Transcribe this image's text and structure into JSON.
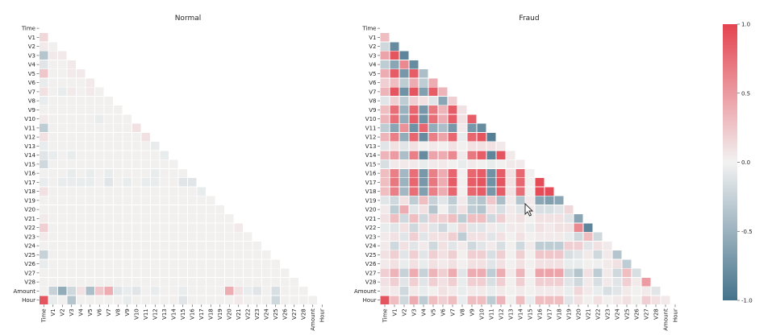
{
  "chart_data": [
    {
      "type": "heatmap",
      "title": "Normal",
      "shape": "lower-triangle",
      "labels": [
        "Time",
        "V1",
        "V2",
        "V3",
        "V4",
        "V5",
        "V6",
        "V7",
        "V8",
        "V9",
        "V10",
        "V11",
        "V12",
        "V13",
        "V14",
        "V15",
        "V16",
        "V17",
        "V18",
        "V19",
        "V20",
        "V21",
        "V22",
        "V23",
        "V24",
        "V25",
        "V26",
        "V27",
        "V28",
        "Amount",
        "Hour"
      ],
      "values": [
        [],
        [
          0.15
        ],
        [
          0.05,
          0.02
        ],
        [
          -0.35,
          0.05,
          0.05
        ],
        [
          -0.1,
          0.02,
          0.02,
          0.05
        ],
        [
          0.25,
          0.02,
          0.02,
          0.05,
          0.05
        ],
        [
          -0.05,
          0.02,
          0.02,
          0.02,
          0.02,
          0.05
        ],
        [
          0.1,
          0.02,
          -0.05,
          0.05,
          0.02,
          0.05,
          0.02
        ],
        [
          -0.05,
          0.02,
          0.02,
          0.02,
          0.02,
          0.02,
          0.02,
          0.02
        ],
        [
          0.02,
          0.02,
          0.02,
          0.02,
          0.02,
          0.02,
          0.02,
          0.02,
          0.02
        ],
        [
          0.05,
          0.02,
          0.02,
          0.02,
          0.02,
          0.02,
          -0.05,
          0.02,
          0.02,
          0.02
        ],
        [
          -0.3,
          0.02,
          0.02,
          0.02,
          0.02,
          0.02,
          0.02,
          0.02,
          0.02,
          0.02,
          0.1
        ],
        [
          0.1,
          0.02,
          0.02,
          0.02,
          0.02,
          0.02,
          0.02,
          0.02,
          0.02,
          0.02,
          0.02,
          0.1
        ],
        [
          -0.05,
          0.02,
          0.02,
          0.02,
          0.02,
          0.02,
          0.02,
          0.02,
          0.02,
          0.02,
          0.02,
          0.02,
          -0.05
        ],
        [
          -0.1,
          -0.05,
          0.02,
          -0.05,
          0.02,
          0.02,
          0.02,
          0.02,
          0.02,
          0.02,
          0.02,
          0.02,
          0.02,
          -0.05
        ],
        [
          -0.2,
          0.02,
          0.02,
          0.02,
          0.02,
          0.02,
          0.02,
          0.02,
          0.02,
          0.02,
          0.02,
          0.02,
          0.02,
          0.02,
          0.02
        ],
        [
          0.02,
          0.02,
          0.02,
          -0.05,
          0.02,
          -0.05,
          0.02,
          -0.05,
          0.02,
          0.02,
          0.02,
          0.02,
          -0.05,
          0.02,
          0.02,
          0.02
        ],
        [
          -0.05,
          0.02,
          -0.05,
          -0.05,
          -0.05,
          -0.05,
          0.02,
          -0.1,
          0.02,
          -0.05,
          0.02,
          -0.05,
          -0.05,
          0.02,
          0.02,
          -0.1,
          -0.1
        ],
        [
          0.1,
          0.02,
          0.02,
          0.02,
          0.02,
          0.02,
          0.02,
          0.02,
          0.02,
          0.02,
          0.02,
          0.02,
          0.02,
          0.02,
          0.02,
          0.02,
          0.02,
          -0.05
        ],
        [
          0.02,
          0.02,
          0.02,
          0.02,
          0.02,
          0.02,
          0.02,
          0.02,
          0.02,
          0.02,
          0.02,
          0.02,
          0.02,
          0.02,
          0.02,
          0.02,
          0.02,
          0.02,
          0.02
        ],
        [
          0.02,
          0.02,
          0.02,
          0.02,
          0.02,
          0.02,
          0.02,
          0.02,
          0.02,
          0.02,
          0.02,
          0.02,
          0.02,
          0.02,
          0.02,
          0.02,
          0.02,
          0.02,
          0.02,
          0.02
        ],
        [
          0.05,
          0.02,
          0.02,
          0.02,
          0.02,
          0.02,
          0.02,
          0.02,
          0.02,
          0.02,
          0.02,
          0.02,
          0.02,
          0.02,
          0.02,
          0.02,
          0.02,
          0.02,
          0.02,
          0.02,
          0.02
        ],
        [
          0.2,
          0.02,
          0.02,
          0.02,
          0.02,
          0.02,
          0.02,
          0.02,
          0.02,
          0.02,
          0.02,
          0.02,
          0.02,
          0.02,
          0.02,
          0.02,
          0.02,
          0.02,
          0.02,
          0.02,
          0.02,
          0.05
        ],
        [
          0.05,
          0.02,
          0.02,
          0.02,
          0.02,
          0.02,
          0.02,
          0.02,
          0.02,
          0.02,
          0.02,
          0.02,
          0.02,
          0.02,
          0.02,
          0.02,
          0.02,
          0.02,
          0.02,
          0.02,
          0.02,
          0.02,
          0.02
        ],
        [
          0.02,
          0.02,
          0.02,
          0.02,
          0.02,
          0.02,
          0.02,
          0.02,
          0.02,
          0.02,
          0.02,
          0.02,
          0.02,
          0.02,
          0.02,
          0.02,
          0.02,
          0.02,
          0.02,
          0.02,
          0.02,
          0.02,
          0.02,
          0.02
        ],
        [
          -0.25,
          0.02,
          0.02,
          0.02,
          0.02,
          0.02,
          0.02,
          0.02,
          0.02,
          0.02,
          0.02,
          0.02,
          0.02,
          0.02,
          0.02,
          0.02,
          0.02,
          0.02,
          0.02,
          0.02,
          0.02,
          0.02,
          0.02,
          0.02,
          0.02
        ],
        [
          -0.05,
          0.02,
          0.02,
          0.02,
          0.02,
          0.02,
          0.02,
          0.02,
          0.02,
          0.02,
          0.02,
          0.02,
          0.02,
          0.02,
          0.02,
          0.02,
          0.02,
          0.02,
          0.02,
          0.02,
          0.02,
          0.02,
          0.02,
          0.02,
          0.02,
          0.02
        ],
        [
          0.02,
          0.02,
          0.02,
          0.02,
          0.02,
          0.02,
          0.02,
          0.02,
          0.02,
          0.02,
          0.02,
          0.02,
          0.02,
          0.02,
          0.02,
          0.02,
          0.02,
          0.02,
          0.02,
          0.02,
          0.02,
          0.02,
          0.02,
          0.02,
          0.02,
          0.02,
          0.02
        ],
        [
          0.02,
          0.02,
          0.02,
          0.02,
          0.02,
          0.02,
          0.02,
          0.02,
          0.02,
          0.02,
          0.02,
          0.02,
          0.02,
          0.02,
          0.02,
          0.02,
          0.02,
          0.02,
          0.02,
          0.02,
          0.02,
          0.02,
          0.02,
          0.02,
          0.02,
          0.02,
          0.02,
          0.02
        ],
        [
          0.02,
          -0.25,
          -0.55,
          -0.2,
          0.1,
          -0.4,
          0.25,
          0.4,
          -0.1,
          -0.05,
          -0.1,
          0.02,
          -0.05,
          0.02,
          0.02,
          -0.05,
          0.02,
          0.02,
          0.02,
          0.02,
          0.4,
          0.1,
          -0.05,
          -0.1,
          0.02,
          -0.15,
          0.02,
          0.02,
          0.02
        ],
        [
          0.9,
          -0.05,
          0.02,
          -0.35,
          0.02,
          0.02,
          0.02,
          0.02,
          0.02,
          -0.05,
          0.02,
          0.02,
          0.02,
          0.02,
          0.02,
          -0.1,
          0.02,
          0.02,
          0.02,
          0.02,
          0.02,
          0.05,
          0.02,
          0.02,
          0.02,
          -0.2,
          0.02,
          0.02,
          0.02,
          0.02
        ]
      ]
    },
    {
      "type": "heatmap",
      "title": "Fraud",
      "shape": "lower-triangle",
      "labels": [
        "Time",
        "V1",
        "V2",
        "V3",
        "V4",
        "V5",
        "V6",
        "V7",
        "V8",
        "V9",
        "V10",
        "V11",
        "V12",
        "V13",
        "V14",
        "V15",
        "V16",
        "V17",
        "V18",
        "V19",
        "V20",
        "V21",
        "V22",
        "V23",
        "V24",
        "V25",
        "V26",
        "V27",
        "V28",
        "Amount",
        "Hour"
      ],
      "values": [
        [],
        [
          0.3
        ],
        [
          -0.2,
          -0.8
        ],
        [
          0.45,
          0.9,
          -0.85
        ],
        [
          -0.3,
          -0.6,
          0.6,
          -0.8
        ],
        [
          0.4,
          0.85,
          -0.7,
          0.85,
          -0.4
        ],
        [
          0.2,
          0.3,
          -0.3,
          0.4,
          -0.3,
          0.4
        ],
        [
          0.35,
          0.9,
          -0.75,
          0.9,
          -0.65,
          0.85,
          0.35
        ],
        [
          -0.1,
          0.2,
          -0.3,
          0.2,
          0.1,
          -0.1,
          -0.6,
          0.2
        ],
        [
          0.3,
          0.75,
          -0.5,
          0.8,
          -0.7,
          0.7,
          0.35,
          0.85,
          0.1
        ],
        [
          0.35,
          0.75,
          -0.55,
          0.85,
          -0.75,
          0.75,
          0.4,
          0.85,
          0.1,
          0.85
        ],
        [
          -0.3,
          -0.6,
          0.55,
          -0.75,
          0.8,
          -0.55,
          -0.4,
          -0.7,
          0.05,
          -0.7,
          -0.8
        ],
        [
          0.35,
          0.65,
          -0.55,
          0.8,
          -0.8,
          0.65,
          0.45,
          0.8,
          -0.05,
          0.8,
          0.9,
          -0.9
        ],
        [
          -0.1,
          0.1,
          -0.1,
          0.1,
          0.02,
          0.05,
          0.02,
          0.1,
          0.02,
          0.1,
          0.1,
          0.1,
          0.05
        ],
        [
          0.35,
          0.5,
          -0.4,
          0.65,
          -0.8,
          0.45,
          0.4,
          0.6,
          0.05,
          0.7,
          0.85,
          -0.85,
          0.9,
          0.05
        ],
        [
          -0.15,
          0.05,
          0.05,
          0.05,
          -0.05,
          0.05,
          0.05,
          0.02,
          -0.05,
          0.05,
          0.02,
          -0.05,
          0.02,
          0.05,
          0.05
        ],
        [
          0.3,
          0.65,
          -0.45,
          0.75,
          -0.7,
          0.65,
          0.4,
          0.8,
          0.02,
          0.8,
          0.85,
          -0.75,
          0.85,
          0.1,
          0.8,
          0.02
        ],
        [
          0.3,
          0.7,
          -0.5,
          0.8,
          -0.7,
          0.7,
          0.4,
          0.85,
          0.02,
          0.85,
          0.9,
          -0.75,
          0.9,
          0.1,
          0.8,
          0.02,
          0.95
        ],
        [
          0.3,
          0.65,
          -0.45,
          0.75,
          -0.65,
          0.65,
          0.4,
          0.8,
          0.02,
          0.8,
          0.85,
          -0.7,
          0.85,
          0.1,
          0.75,
          0.02,
          0.95,
          0.95
        ],
        [
          -0.1,
          -0.2,
          0.1,
          -0.3,
          0.3,
          -0.25,
          -0.1,
          -0.3,
          0.05,
          -0.3,
          -0.35,
          0.25,
          -0.4,
          0.05,
          -0.35,
          0.05,
          -0.6,
          -0.65,
          -0.6
        ],
        [
          0.05,
          -0.3,
          0.4,
          -0.1,
          0.1,
          -0.35,
          0.02,
          -0.2,
          0.1,
          -0.3,
          -0.35,
          0.1,
          -0.15,
          0.05,
          -0.1,
          0.05,
          -0.15,
          -0.15,
          -0.1,
          0.15
        ],
        [
          0.1,
          0.3,
          -0.2,
          0.3,
          -0.2,
          0.2,
          0.2,
          0.3,
          -0.3,
          0.3,
          0.3,
          -0.2,
          0.2,
          0.05,
          0.1,
          0.02,
          0.1,
          0.1,
          0.1,
          -0.1,
          -0.6
        ],
        [
          -0.05,
          -0.1,
          0.1,
          -0.2,
          0.1,
          -0.1,
          -0.2,
          -0.05,
          0.15,
          -0.1,
          -0.1,
          0.05,
          -0.05,
          0.05,
          0.05,
          -0.05,
          0.1,
          0.05,
          0.1,
          0.1,
          0.6,
          -0.85
        ],
        [
          0.05,
          0.1,
          -0.1,
          0.2,
          -0.1,
          0.1,
          0.1,
          0.2,
          -0.3,
          0.1,
          0.1,
          -0.1,
          0.1,
          0.02,
          0.1,
          0.02,
          0.05,
          0.05,
          0.05,
          -0.05,
          -0.2,
          0.3,
          -0.2
        ],
        [
          0.05,
          -0.2,
          0.1,
          -0.1,
          0.05,
          -0.2,
          0.1,
          -0.1,
          0.05,
          -0.2,
          -0.1,
          0.05,
          -0.15,
          0.02,
          -0.2,
          0.05,
          -0.3,
          -0.3,
          -0.3,
          0.2,
          0.2,
          -0.1,
          0.1,
          0.05
        ],
        [
          0.1,
          0.2,
          -0.1,
          0.2,
          -0.1,
          0.2,
          0.1,
          0.2,
          0.02,
          0.2,
          0.2,
          -0.15,
          0.2,
          0.02,
          0.2,
          0.02,
          0.25,
          0.25,
          0.25,
          -0.15,
          -0.1,
          0.05,
          -0.2,
          0.05,
          -0.35
        ],
        [
          0.05,
          0.1,
          -0.05,
          0.1,
          -0.05,
          0.1,
          0.05,
          0.1,
          0.02,
          0.1,
          0.1,
          -0.1,
          0.1,
          0.02,
          0.1,
          0.02,
          0.1,
          0.1,
          0.1,
          -0.05,
          -0.05,
          0.02,
          -0.02,
          0.05,
          0.1,
          -0.3
        ],
        [
          0.2,
          0.35,
          -0.25,
          0.4,
          -0.25,
          0.35,
          0.2,
          0.4,
          -0.1,
          0.4,
          0.4,
          -0.3,
          0.4,
          0.05,
          0.35,
          0.02,
          0.45,
          0.45,
          0.45,
          -0.2,
          -0.35,
          0.1,
          -0.3,
          0.05,
          -0.2,
          0.3,
          -0.15
        ],
        [
          0.1,
          0.2,
          -0.1,
          0.2,
          -0.1,
          0.2,
          0.1,
          0.2,
          -0.05,
          0.2,
          0.2,
          -0.15,
          0.2,
          0.02,
          0.2,
          0.02,
          0.2,
          0.2,
          0.2,
          -0.1,
          -0.2,
          0.05,
          -0.15,
          0.05,
          -0.1,
          0.2,
          0.05,
          0.5
        ],
        [
          0.05,
          0.05,
          -0.2,
          0.05,
          -0.05,
          0.02,
          0.1,
          0.05,
          -0.05,
          0.05,
          0.05,
          -0.05,
          0.05,
          0.02,
          0.05,
          0.02,
          0.05,
          0.05,
          0.05,
          -0.05,
          0.15,
          0.05,
          -0.05,
          -0.15,
          -0.1,
          0.05,
          0.02,
          0.05,
          -0.1
        ],
        [
          0.9,
          0.3,
          -0.2,
          0.4,
          -0.3,
          0.3,
          0.2,
          0.3,
          -0.05,
          0.3,
          0.3,
          -0.3,
          0.35,
          0.02,
          0.3,
          -0.05,
          0.3,
          0.3,
          0.3,
          -0.1,
          0.1,
          0.02,
          0.1,
          0.02,
          0.05,
          0.1,
          0.02,
          0.2,
          0.1,
          0.05
        ]
      ]
    }
  ],
  "colorbar": {
    "ticks": [
      "1.0",
      "0.5",
      "0.0",
      "-0.5",
      "-1.0"
    ],
    "tick_values": [
      1.0,
      0.5,
      0.0,
      -0.5,
      -1.0
    ],
    "vmin": -1.0,
    "vmax": 1.0,
    "colors": {
      "negative": "#44728b",
      "neutral": "#f2f2f2",
      "positive": "#e4434f"
    }
  }
}
